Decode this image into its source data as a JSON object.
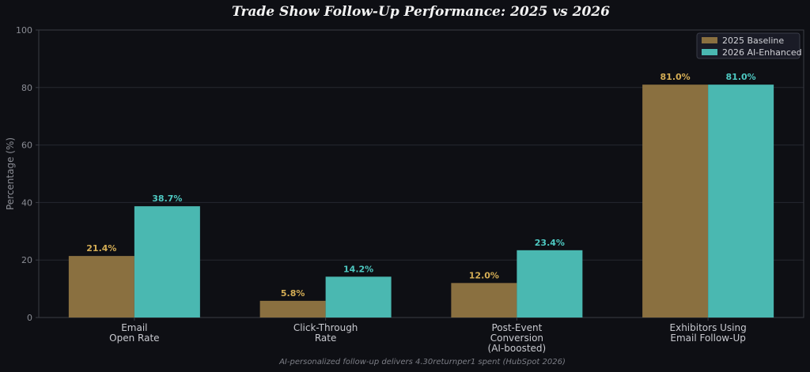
{
  "chart_data": {
    "type": "bar",
    "title": "Trade Show Follow-Up Performance: 2025 vs 2026",
    "ylabel": "Percentage (%)",
    "xlabel": "",
    "ylim": [
      0,
      100
    ],
    "yticks": [
      "0",
      "20",
      "40",
      "60",
      "80",
      "100"
    ],
    "grid": true,
    "legend_position": "top-right",
    "categories": [
      [
        "Email",
        "Open Rate"
      ],
      [
        "Click-Through",
        "Rate"
      ],
      [
        "Post-Event",
        "Conversion",
        "(AI-boosted)"
      ],
      [
        "Exhibitors Using",
        "Email Follow-Up"
      ]
    ],
    "series": [
      {
        "name": "2025 Baseline",
        "color": "#8a7040",
        "label_color": "#d4ad55",
        "values": [
          21.4,
          5.8,
          12.0,
          81.0
        ],
        "labels": [
          "21.4%",
          "5.8%",
          "12.0%",
          "81.0%"
        ]
      },
      {
        "name": "2026 AI-Enhanced",
        "color": "#4ab8b1",
        "label_color": "#4ec9c2",
        "values": [
          38.7,
          14.2,
          23.4,
          81.0
        ],
        "labels": [
          "38.7%",
          "14.2%",
          "23.4%",
          "81.0%"
        ]
      }
    ],
    "footnote": "AI-personalized follow-up delivers 4.30returnper1 spent (HubSpot 2026)"
  },
  "colors": {
    "background": "#0e0f14",
    "grid": "#262830",
    "axis": "#3a3c44",
    "tick_text": "#8a8c94",
    "category_text": "#c8c9cf",
    "title_text": "#f2f2f2",
    "legend_bg": "#1a1b26",
    "legend_text": "#d0d1d6",
    "footnote_text": "#7c7e86"
  }
}
